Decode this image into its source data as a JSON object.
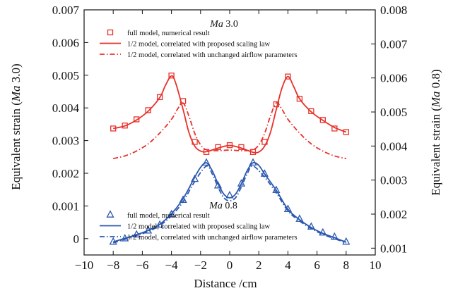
{
  "chart_data": {
    "type": "line",
    "xlabel": "Distance /cm",
    "ylabel_left": "Equivalent strain (Ma 3.0)",
    "ylabel_left_parts": [
      "Equivalent strain (",
      "Ma",
      " 3.0)"
    ],
    "ylabel_right": "Equivalent strain (Ma 0.8)",
    "ylabel_right_parts": [
      "Equivalent strain (",
      "Ma",
      " 0.8)"
    ],
    "xlim": [
      -10,
      10
    ],
    "ylim_left": [
      -0.0005,
      0.007
    ],
    "ylim_right": [
      0.0008,
      0.008
    ],
    "xticks": [
      -10,
      -8,
      -6,
      -4,
      -2,
      0,
      2,
      4,
      6,
      8,
      10
    ],
    "xtick_labels": [
      "−10",
      "−8",
      "−6",
      "−4",
      "−2",
      "0",
      "2",
      "4",
      "6",
      "8",
      "10"
    ],
    "yticks_left": [
      0,
      0.001,
      0.002,
      0.003,
      0.004,
      0.005,
      0.006,
      0.007
    ],
    "ytick_labels_left": [
      "0",
      "0.001",
      "0.002",
      "0.003",
      "0.004",
      "0.005",
      "0.006",
      "0.007"
    ],
    "yticks_right": [
      0.001,
      0.002,
      0.003,
      0.004,
      0.005,
      0.006,
      0.007,
      0.008
    ],
    "ytick_labels_right": [
      "0.001",
      "0.002",
      "0.003",
      "0.004",
      "0.005",
      "0.006",
      "0.007",
      "0.008"
    ],
    "grid": false,
    "groups": [
      {
        "annotation_parts": [
          "Ma",
          " 3.0"
        ],
        "axis": "left",
        "color": "#e8312a",
        "legend_entries": [
          "full model, numerical result",
          "1/2 model, correlated with proposed scaling law",
          "1/2 model, correlated with unchanged airflow parameters"
        ],
        "series": [
          {
            "name": "full model, numerical result",
            "style": "markers-square",
            "x": [
              -8,
              -7.2,
              -6.4,
              -5.6,
              -4.8,
              -4,
              -3.2,
              -2.4,
              -1.6,
              -0.8,
              0,
              0.8,
              1.6,
              2.4,
              3.2,
              4,
              4.8,
              5.6,
              6.4,
              7.2,
              8
            ],
            "y": [
              0.00337,
              0.00346,
              0.00365,
              0.00393,
              0.00433,
              0.00499,
              0.00421,
              0.00296,
              0.00265,
              0.0028,
              0.00286,
              0.0028,
              0.00265,
              0.00296,
              0.00411,
              0.00496,
              0.00428,
              0.0039,
              0.00363,
              0.00337,
              0.00326
            ]
          },
          {
            "name": "1/2 model, correlated with proposed scaling law",
            "style": "solid",
            "x": [
              -8,
              -7.2,
              -6.4,
              -5.6,
              -4.8,
              -4.4,
              -4,
              -3.7,
              -3.2,
              -2.8,
              -2.4,
              -2,
              -1.6,
              -0.8,
              0,
              0.8,
              1.6,
              2,
              2.4,
              2.8,
              3.2,
              3.6,
              4,
              4.4,
              4.8,
              5.6,
              6.4,
              7.2,
              8
            ],
            "y": [
              0.00337,
              0.00345,
              0.00363,
              0.0039,
              0.00432,
              0.0047,
              0.00498,
              0.00475,
              0.00395,
              0.00325,
              0.00283,
              0.00268,
              0.00266,
              0.00277,
              0.00285,
              0.00277,
              0.00264,
              0.00265,
              0.00283,
              0.00325,
              0.00395,
              0.00462,
              0.00496,
              0.00465,
              0.00428,
              0.00388,
              0.00362,
              0.0034,
              0.00326
            ]
          },
          {
            "name": "1/2 model, correlated with unchanged airflow parameters",
            "style": "dashdot",
            "x": [
              -8,
              -7.2,
              -6.4,
              -5.6,
              -4.8,
              -4,
              -3.6,
              -3.2,
              -2.8,
              -2.4,
              -2,
              -1.6,
              -0.8,
              0,
              0.8,
              1.6,
              2,
              2.4,
              2.8,
              3.2,
              3.6,
              4,
              4.8,
              5.6,
              6.4,
              7.2,
              8
            ],
            "y": [
              0.00245,
              0.00253,
              0.00268,
              0.0029,
              0.00323,
              0.00365,
              0.00395,
              0.00415,
              0.00375,
              0.00322,
              0.00287,
              0.00272,
              0.00269,
              0.00271,
              0.00269,
              0.00272,
              0.00287,
              0.00322,
              0.00375,
              0.00415,
              0.00395,
              0.00365,
              0.00323,
              0.0029,
              0.00268,
              0.00253,
              0.00245
            ]
          }
        ]
      },
      {
        "annotation_parts": [
          "Ma",
          " 0.8"
        ],
        "axis": "left",
        "color": "#2b58b0",
        "legend_entries": [
          "full model, numerical result",
          "1/2 model, correlated with proposed scaling law",
          "1/2 model, correlated with unchanged airflow parameters"
        ],
        "series": [
          {
            "name": "full model, numerical result",
            "style": "markers-triangle",
            "x": [
              -8,
              -7.2,
              -6.4,
              -5.6,
              -4.8,
              -4,
              -3.2,
              -2.4,
              -1.6,
              -0.8,
              0,
              0.8,
              1.6,
              2.4,
              3.2,
              4,
              4.8,
              5.6,
              6.4,
              7.2,
              8
            ],
            "y": [
              -0.0001,
              0,
              0.00012,
              0.00024,
              0.00042,
              0.00074,
              0.00118,
              0.00182,
              0.00232,
              0.00162,
              0.00132,
              0.00168,
              0.00232,
              0.00198,
              0.00148,
              0.0009,
              0.0006,
              0.00036,
              0.00018,
              5e-05,
              -0.0001
            ]
          },
          {
            "name": "1/2 model, correlated with proposed scaling law",
            "style": "solid",
            "x": [
              -8,
              -7.2,
              -6.4,
              -5.6,
              -4.8,
              -4,
              -3.2,
              -2.4,
              -2,
              -1.6,
              -1.2,
              -0.8,
              -0.4,
              0,
              0.4,
              0.8,
              1.2,
              1.6,
              2,
              2.4,
              3.2,
              4,
              4.8,
              5.6,
              6.4,
              7.2,
              8
            ],
            "y": [
              -0.0001,
              1e-05,
              0.00012,
              0.00025,
              0.00044,
              0.00076,
              0.00122,
              0.00188,
              0.00218,
              0.00232,
              0.00208,
              0.00168,
              0.00136,
              0.00125,
              0.00136,
              0.00168,
              0.00208,
              0.00232,
              0.00224,
              0.00198,
              0.00148,
              0.0009,
              0.00058,
              0.00034,
              0.00016,
              3e-05,
              -0.00011
            ]
          },
          {
            "name": "1/2 model, correlated with unchanged airflow parameters",
            "style": "dashdot",
            "x": [
              -8,
              -7.2,
              -6.4,
              -5.6,
              -4.8,
              -4,
              -3.2,
              -2.4,
              -1.6,
              -1.2,
              -0.8,
              -0.4,
              0,
              0.4,
              0.8,
              1.2,
              1.6,
              2.4,
              3.2,
              4,
              4.8,
              5.6,
              6.4,
              7.2,
              8
            ],
            "y": [
              -0.00013,
              -2e-05,
              9e-05,
              0.00022,
              0.0004,
              0.0007,
              0.00113,
              0.00175,
              0.00222,
              0.00198,
              0.00158,
              0.00125,
              0.00116,
              0.00125,
              0.00158,
              0.00198,
              0.00222,
              0.00188,
              0.0014,
              0.00085,
              0.00054,
              0.00031,
              0.00013,
              0,
              -0.00013
            ]
          }
        ]
      }
    ]
  }
}
